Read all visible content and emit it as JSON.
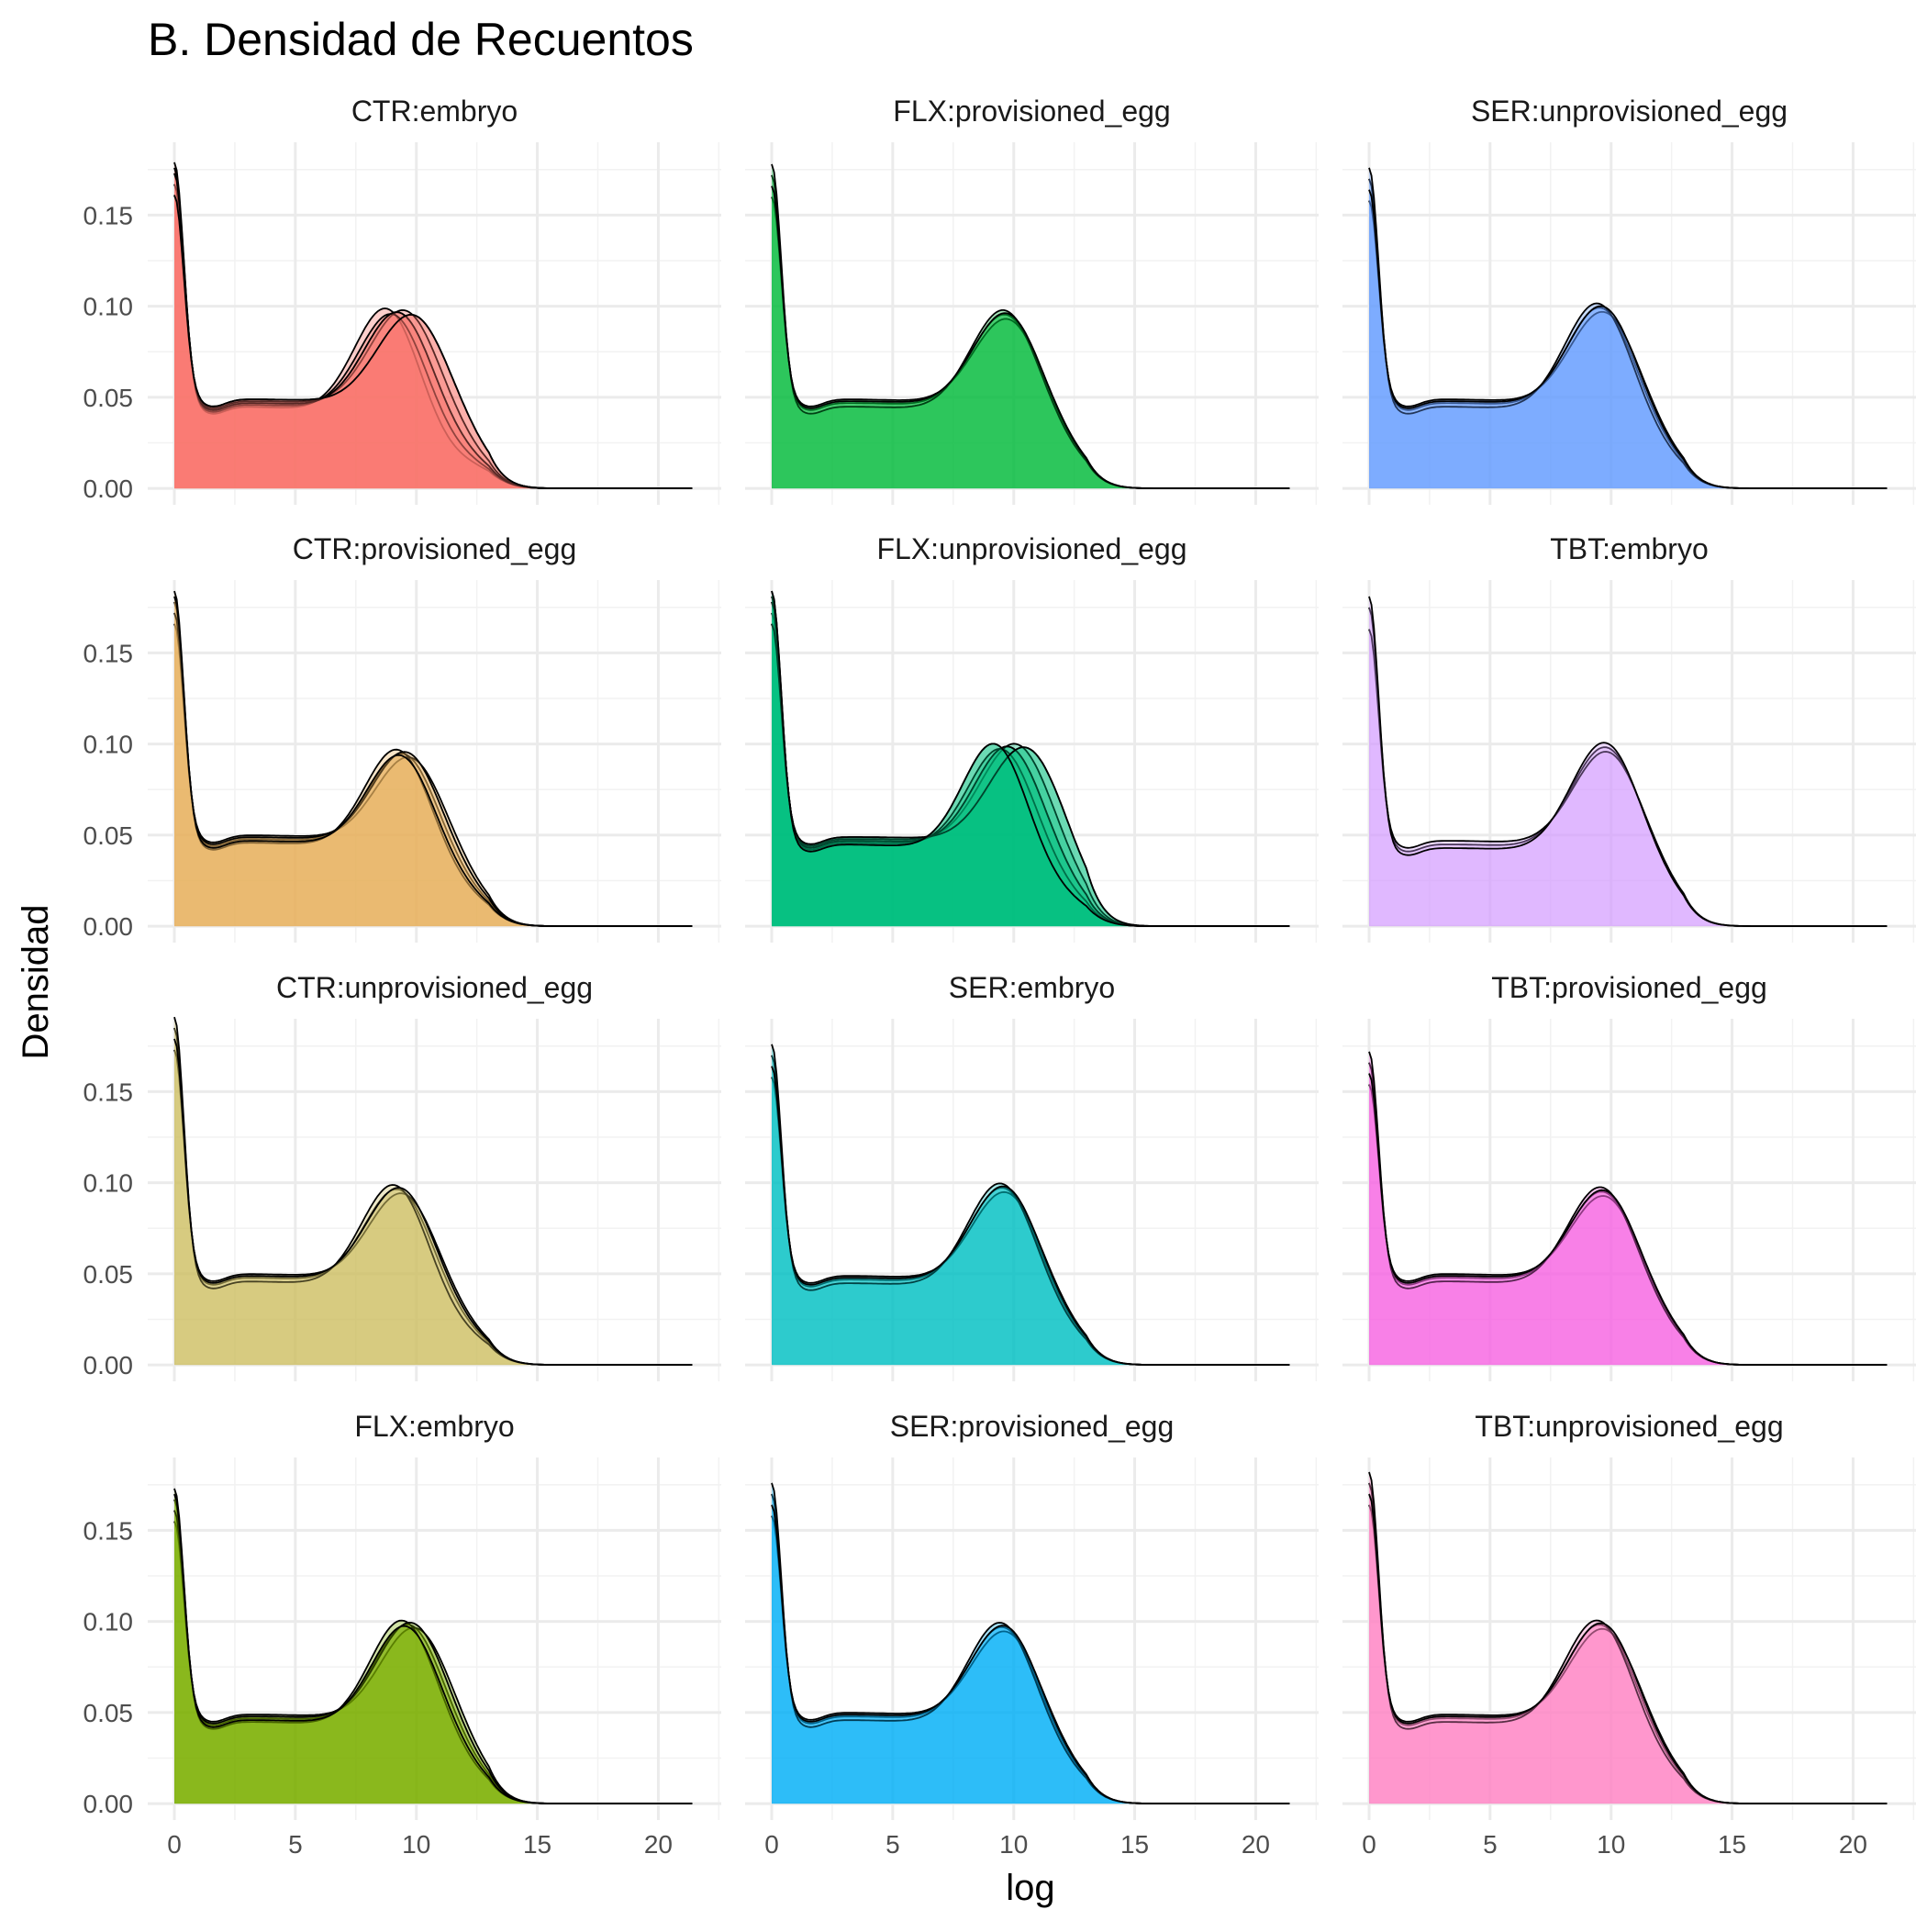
{
  "chart_data": {
    "type": "area",
    "title": "B. Densidad de Recuentos",
    "xlabel": "log",
    "ylabel": "Densidad",
    "xlim": [
      -1.1,
      22.6
    ],
    "ylim": [
      -0.009,
      0.19
    ],
    "x_ticks": [
      0,
      5,
      10,
      15,
      20
    ],
    "x_tick_labels": [
      "0",
      "5",
      "10",
      "15",
      "20"
    ],
    "y_ticks": [
      0.0,
      0.05,
      0.1,
      0.15
    ],
    "y_tick_labels": [
      "0.00",
      "0.05",
      "0.10",
      "0.15"
    ],
    "grid": true,
    "layout": {
      "rows": 4,
      "cols": 3
    },
    "panels": [
      {
        "label": "CTR:embryo",
        "color": "#F8766D",
        "start_y": 0.173,
        "plateau": 0.047,
        "peak_x": 9.4,
        "peak_y": 0.111,
        "spread": 1.05
      },
      {
        "label": "FLX:provisioned_egg",
        "color": "#00BA38",
        "start_y": 0.172,
        "plateau": 0.047,
        "peak_x": 9.8,
        "peak_y": 0.109,
        "spread": 0.15
      },
      {
        "label": "SER:unprovisioned_egg",
        "color": "#619CFF",
        "start_y": 0.17,
        "plateau": 0.047,
        "peak_x": 9.7,
        "peak_y": 0.113,
        "spread": 0.25
      },
      {
        "label": "CTR:provisioned_egg",
        "color": "#E7B35F",
        "start_y": 0.178,
        "plateau": 0.048,
        "peak_x": 9.6,
        "peak_y": 0.109,
        "spread": 0.5
      },
      {
        "label": "FLX:unprovisioned_egg",
        "color": "#00BF7D",
        "start_y": 0.178,
        "plateau": 0.047,
        "peak_x": 9.9,
        "peak_y": 0.112,
        "spread": 1.2
      },
      {
        "label": "TBT:embryo",
        "color": "#D39EFF",
        "start_y": 0.175,
        "plateau": 0.045,
        "peak_x": 9.9,
        "peak_y": 0.111,
        "spread": 0.1
      },
      {
        "label": "CTR:unprovisioned_egg",
        "color": "#CFC065",
        "start_y": 0.185,
        "plateau": 0.048,
        "peak_x": 9.4,
        "peak_y": 0.111,
        "spread": 0.35
      },
      {
        "label": "SER:embryo",
        "color": "#00BFC4",
        "start_y": 0.17,
        "plateau": 0.047,
        "peak_x": 9.7,
        "peak_y": 0.111,
        "spread": 0.2
      },
      {
        "label": "TBT:provisioned_egg",
        "color": "#F564E3",
        "start_y": 0.166,
        "plateau": 0.048,
        "peak_x": 9.8,
        "peak_y": 0.109,
        "spread": 0.15
      },
      {
        "label": "FLX:embryo",
        "color": "#7CAE00",
        "start_y": 0.167,
        "plateau": 0.047,
        "peak_x": 9.8,
        "peak_y": 0.112,
        "spread": 0.5
      },
      {
        "label": "SER:provisioned_egg",
        "color": "#00B0F6",
        "start_y": 0.17,
        "plateau": 0.048,
        "peak_x": 9.7,
        "peak_y": 0.111,
        "spread": 0.2
      },
      {
        "label": "TBT:unprovisioned_egg",
        "color": "#FF82C3",
        "start_y": 0.176,
        "plateau": 0.047,
        "peak_x": 9.7,
        "peak_y": 0.112,
        "spread": 0.25
      }
    ]
  }
}
